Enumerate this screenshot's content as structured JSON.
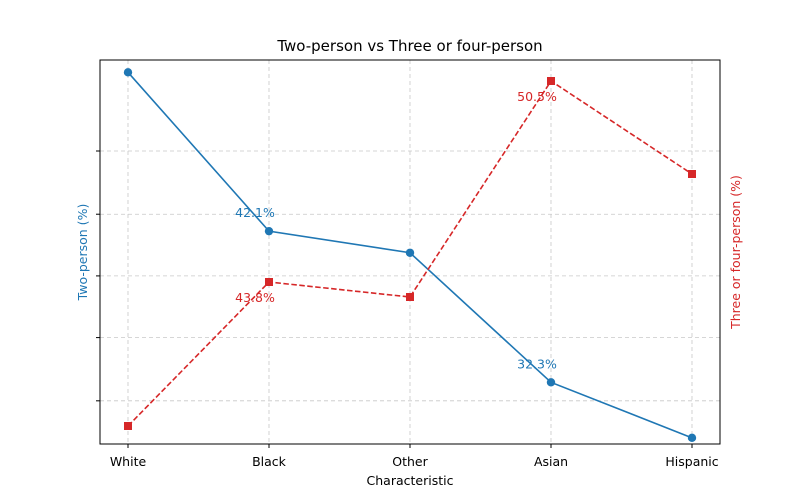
{
  "chart_data": {
    "type": "line",
    "title": "Two-person vs Three or four-person",
    "xlabel": "Characteristic",
    "categories": [
      "White",
      "Black",
      "Other",
      "Asian",
      "Hispanic"
    ],
    "y_left": {
      "label": "Two-person (%)",
      "range": [
        28.3,
        53.2
      ],
      "tick_labels_visible": false,
      "gridlines": [
        31.1,
        35.2,
        39.2,
        43.2,
        47.3
      ]
    },
    "y_right": {
      "label": "Three or four-person (%)",
      "range": [
        38.4,
        51.2
      ]
    },
    "series": [
      {
        "name": "Two-person (%)",
        "axis": "left",
        "color": "#1f77b4",
        "marker": "circle",
        "line_style": "solid",
        "values": [
          52.4,
          42.1,
          40.7,
          32.3,
          28.7
        ],
        "labels": [
          "",
          "42.1%",
          "",
          "32.3%",
          ""
        ]
      },
      {
        "name": "Three or four-person (%)",
        "axis": "right",
        "color": "#d62728",
        "marker": "square",
        "line_style": "dashed",
        "values": [
          39.0,
          43.8,
          43.3,
          50.5,
          47.4
        ],
        "labels": [
          "",
          "43.8%",
          "",
          "50.5%",
          ""
        ]
      }
    ],
    "grid": true,
    "legend": "none"
  }
}
